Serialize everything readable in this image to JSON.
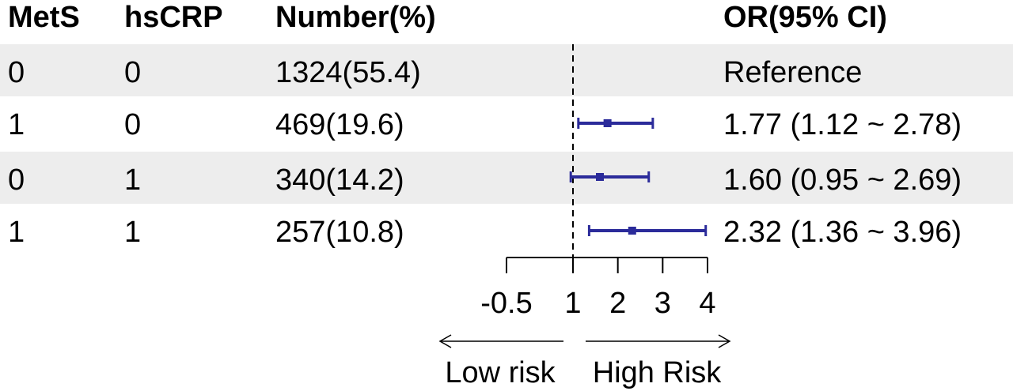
{
  "headers": {
    "mets": "MetS",
    "hscrp": "hsCRP",
    "number": "Number(%)",
    "or": "OR(95% CI)"
  },
  "rows": [
    {
      "mets": "0",
      "hscrp": "0",
      "number": "1324(55.4)",
      "or_text": "Reference"
    },
    {
      "mets": "1",
      "hscrp": "0",
      "number": "469(19.6)",
      "or_text": "1.77 (1.12 ~ 2.78)"
    },
    {
      "mets": "0",
      "hscrp": "1",
      "number": "340(14.2)",
      "or_text": "1.60 (0.95 ~ 2.69)"
    },
    {
      "mets": "1",
      "hscrp": "1",
      "number": "257(10.8)",
      "or_text": "2.32 (1.36 ~ 3.96)"
    }
  ],
  "chart_data": {
    "type": "forest",
    "reference_line": 1,
    "xlim": [
      -0.5,
      4
    ],
    "ticks": [
      "-0.5",
      "1",
      "2",
      "3",
      "4"
    ],
    "tick_values": [
      -0.5,
      1,
      2,
      3,
      4
    ],
    "points": [
      null,
      {
        "or": 1.77,
        "lower": 1.12,
        "upper": 2.78
      },
      {
        "or": 1.6,
        "lower": 0.95,
        "upper": 2.69
      },
      {
        "or": 2.32,
        "lower": 1.36,
        "upper": 3.96
      }
    ],
    "arrow_left_label": "Low risk",
    "arrow_right_label": "High Risk",
    "colors": {
      "ci": "#2b2b9a",
      "axis": "#000000"
    }
  }
}
